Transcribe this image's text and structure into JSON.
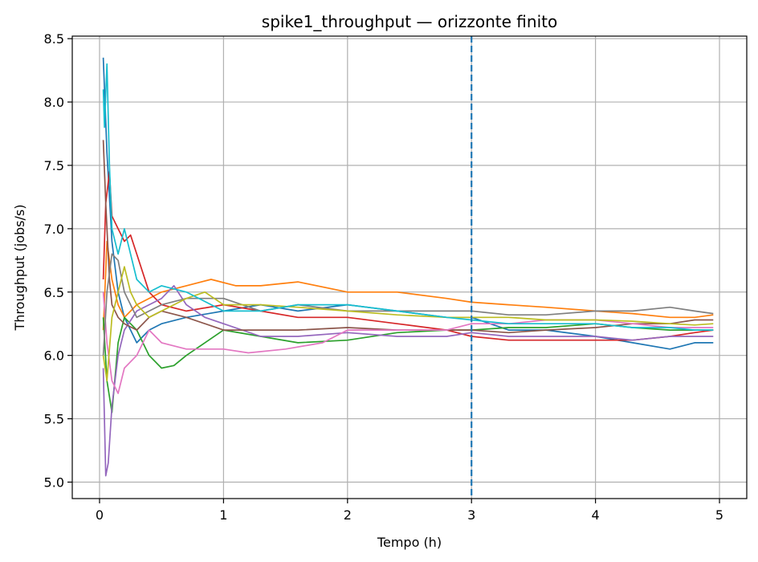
{
  "chart_data": {
    "type": "line",
    "title": "spike1_throughput — orizzonte finito",
    "xlabel": "Tempo (h)",
    "ylabel": "Throughput (jobs/s)",
    "xlim": [
      -0.22,
      5.22
    ],
    "ylim": [
      4.87,
      8.52
    ],
    "xticks": [
      0,
      1,
      2,
      3,
      4,
      5
    ],
    "yticks": [
      5.0,
      5.5,
      6.0,
      6.5,
      7.0,
      7.5,
      8.0,
      8.5
    ],
    "xtick_labels": [
      "0",
      "1",
      "2",
      "3",
      "4",
      "5"
    ],
    "ytick_labels": [
      "5.0",
      "5.5",
      "6.0",
      "6.5",
      "7.0",
      "7.5",
      "8.0",
      "8.5"
    ],
    "grid": true,
    "vline": {
      "x": 3.0,
      "style": "dashed",
      "color": "#1f77b4"
    },
    "series": [
      {
        "color": "#1f77b4",
        "x": [
          0.03,
          0.06,
          0.1,
          0.15,
          0.2,
          0.3,
          0.4,
          0.5,
          0.7,
          1.0,
          1.3,
          1.6,
          2.0,
          2.4,
          2.8,
          3.0,
          3.3,
          3.6,
          4.0,
          4.3,
          4.6,
          4.8,
          4.95
        ],
        "y": [
          8.35,
          7.6,
          6.9,
          6.5,
          6.3,
          6.1,
          6.2,
          6.25,
          6.3,
          6.35,
          6.4,
          6.35,
          6.4,
          6.35,
          6.3,
          6.3,
          6.2,
          6.2,
          6.15,
          6.1,
          6.05,
          6.1,
          6.1
        ]
      },
      {
        "color": "#ff7f0e",
        "x": [
          0.03,
          0.06,
          0.1,
          0.15,
          0.2,
          0.3,
          0.4,
          0.5,
          0.7,
          0.9,
          1.1,
          1.3,
          1.6,
          2.0,
          2.4,
          2.8,
          3.0,
          3.3,
          3.6,
          4.0,
          4.3,
          4.6,
          4.8,
          4.95
        ],
        "y": [
          6.2,
          6.9,
          6.6,
          6.4,
          6.3,
          6.4,
          6.45,
          6.5,
          6.55,
          6.6,
          6.55,
          6.55,
          6.58,
          6.5,
          6.5,
          6.45,
          6.42,
          6.4,
          6.38,
          6.35,
          6.33,
          6.3,
          6.3,
          6.32
        ]
      },
      {
        "color": "#2ca02c",
        "x": [
          0.03,
          0.06,
          0.1,
          0.15,
          0.2,
          0.3,
          0.4,
          0.5,
          0.6,
          0.7,
          0.85,
          1.0,
          1.3,
          1.6,
          2.0,
          2.4,
          2.8,
          3.0,
          3.3,
          3.6,
          4.0,
          4.3,
          4.6,
          4.8,
          4.95
        ],
        "y": [
          6.3,
          5.8,
          5.55,
          6.1,
          6.3,
          6.2,
          6.0,
          5.9,
          5.92,
          6.0,
          6.1,
          6.2,
          6.15,
          6.1,
          6.12,
          6.18,
          6.2,
          6.2,
          6.22,
          6.22,
          6.25,
          6.22,
          6.2,
          6.2,
          6.2
        ]
      },
      {
        "color": "#d62728",
        "x": [
          0.03,
          0.05,
          0.08,
          0.1,
          0.15,
          0.2,
          0.25,
          0.3,
          0.4,
          0.5,
          0.7,
          1.0,
          1.3,
          1.6,
          2.0,
          2.4,
          2.8,
          3.0,
          3.3,
          3.6,
          4.0,
          4.3,
          4.6,
          4.8,
          4.95
        ],
        "y": [
          6.6,
          7.2,
          7.45,
          7.1,
          7.0,
          6.9,
          6.95,
          6.8,
          6.5,
          6.4,
          6.35,
          6.4,
          6.35,
          6.3,
          6.3,
          6.25,
          6.2,
          6.15,
          6.12,
          6.12,
          6.12,
          6.12,
          6.15,
          6.18,
          6.2
        ]
      },
      {
        "color": "#9467bd",
        "x": [
          0.03,
          0.05,
          0.07,
          0.1,
          0.15,
          0.2,
          0.3,
          0.4,
          0.5,
          0.6,
          0.7,
          0.85,
          1.0,
          1.3,
          1.6,
          2.0,
          2.4,
          2.8,
          3.0,
          3.3,
          3.6,
          4.0,
          4.3,
          4.6,
          4.8,
          4.95
        ],
        "y": [
          5.9,
          5.05,
          5.15,
          5.6,
          6.0,
          6.2,
          6.35,
          6.4,
          6.45,
          6.55,
          6.4,
          6.3,
          6.25,
          6.15,
          6.15,
          6.18,
          6.15,
          6.15,
          6.18,
          6.15,
          6.15,
          6.15,
          6.12,
          6.15,
          6.15,
          6.15
        ]
      },
      {
        "color": "#8c564b",
        "x": [
          0.03,
          0.05,
          0.08,
          0.1,
          0.15,
          0.2,
          0.3,
          0.4,
          0.5,
          0.7,
          1.0,
          1.3,
          1.6,
          2.0,
          2.4,
          2.8,
          3.0,
          3.3,
          3.6,
          4.0,
          4.3,
          4.6,
          4.8,
          4.95
        ],
        "y": [
          7.7,
          7.2,
          6.6,
          6.4,
          6.3,
          6.25,
          6.2,
          6.3,
          6.35,
          6.3,
          6.2,
          6.2,
          6.2,
          6.22,
          6.2,
          6.2,
          6.2,
          6.18,
          6.2,
          6.22,
          6.25,
          6.25,
          6.28,
          6.28
        ]
      },
      {
        "color": "#e377c2",
        "x": [
          0.03,
          0.06,
          0.1,
          0.15,
          0.2,
          0.3,
          0.4,
          0.5,
          0.7,
          0.85,
          1.0,
          1.2,
          1.5,
          1.8,
          2.0,
          2.4,
          2.8,
          3.0,
          3.3,
          3.6,
          4.0,
          4.3,
          4.6,
          4.8,
          4.95
        ],
        "y": [
          6.5,
          6.1,
          5.8,
          5.7,
          5.9,
          6.0,
          6.2,
          6.1,
          6.05,
          6.05,
          6.05,
          6.02,
          6.05,
          6.1,
          6.2,
          6.2,
          6.2,
          6.25,
          6.25,
          6.28,
          6.28,
          6.25,
          6.22,
          6.22,
          6.22
        ]
      },
      {
        "color": "#7f7f7f",
        "x": [
          0.03,
          0.06,
          0.1,
          0.15,
          0.2,
          0.3,
          0.4,
          0.5,
          0.7,
          1.0,
          1.3,
          1.6,
          2.0,
          2.4,
          2.8,
          3.0,
          3.3,
          3.6,
          4.0,
          4.3,
          4.6,
          4.8,
          4.95
        ],
        "y": [
          6.0,
          6.5,
          6.8,
          6.75,
          6.5,
          6.3,
          6.35,
          6.4,
          6.45,
          6.45,
          6.35,
          6.4,
          6.35,
          6.35,
          6.35,
          6.35,
          6.32,
          6.32,
          6.35,
          6.35,
          6.38,
          6.35,
          6.33
        ]
      },
      {
        "color": "#bcbd22",
        "x": [
          0.03,
          0.06,
          0.1,
          0.15,
          0.2,
          0.25,
          0.3,
          0.4,
          0.5,
          0.6,
          0.7,
          0.85,
          1.0,
          1.3,
          1.6,
          2.0,
          2.4,
          2.8,
          3.0,
          3.3,
          3.6,
          4.0,
          4.3,
          4.6,
          4.8,
          4.95
        ],
        "y": [
          6.0,
          5.8,
          6.3,
          6.5,
          6.7,
          6.5,
          6.4,
          6.3,
          6.35,
          6.4,
          6.45,
          6.5,
          6.4,
          6.4,
          6.38,
          6.35,
          6.32,
          6.3,
          6.3,
          6.3,
          6.28,
          6.28,
          6.27,
          6.25,
          6.24,
          6.25
        ]
      },
      {
        "color": "#17becf",
        "x": [
          0.03,
          0.04,
          0.06,
          0.08,
          0.1,
          0.15,
          0.2,
          0.3,
          0.4,
          0.5,
          0.7,
          1.0,
          1.3,
          1.6,
          2.0,
          2.4,
          2.8,
          3.0,
          3.3,
          3.6,
          4.0,
          4.3,
          4.6,
          4.8,
          4.95
        ],
        "y": [
          8.1,
          7.8,
          8.3,
          7.5,
          7.0,
          6.8,
          7.0,
          6.6,
          6.5,
          6.55,
          6.5,
          6.35,
          6.35,
          6.4,
          6.4,
          6.35,
          6.3,
          6.28,
          6.25,
          6.25,
          6.25,
          6.22,
          6.22,
          6.2,
          6.2
        ]
      }
    ]
  }
}
